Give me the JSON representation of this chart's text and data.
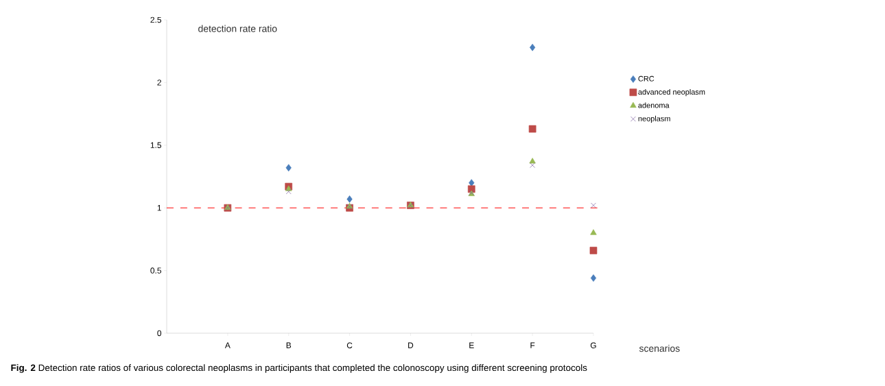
{
  "chart_data": {
    "type": "scatter",
    "ylabel": "detection rate ratio",
    "xlabel": "scenarios",
    "annotations": [
      "**Fig. 2** Detection rate ratios of various colorectal neoplasms in participants that completed the colonoscopy using different screening protocols"
    ],
    "categories": [
      "A",
      "B",
      "C",
      "D",
      "E",
      "F",
      "G"
    ],
    "series": [
      {
        "name": "CRC",
        "color": "#4a7ebb",
        "marker": "diamond",
        "values": [
          null,
          1.32,
          1.07,
          null,
          1.2,
          2.28,
          0.44
        ]
      },
      {
        "name": "advanced neoplasm",
        "color": "#be4b48",
        "marker": "square",
        "values": [
          1.0,
          1.17,
          1.0,
          1.02,
          1.15,
          1.63,
          0.66
        ]
      },
      {
        "name": "adenoma",
        "color": "#98b954",
        "marker": "triangle",
        "values": [
          1.0,
          1.15,
          1.01,
          1.02,
          1.11,
          1.37,
          0.8
        ]
      },
      {
        "name": "neoplasm",
        "color": "#7d60a0",
        "marker": "cross",
        "values": [
          1.0,
          1.13,
          1.01,
          1.02,
          1.12,
          1.34,
          1.02
        ]
      }
    ],
    "ylim": [
      0,
      2.5
    ],
    "yticks": [
      0,
      0.5,
      1,
      1.5,
      2,
      2.5
    ],
    "ref_lines": [
      {
        "axis": "y",
        "value": 1,
        "color": "#ff0000",
        "line_style": "dashed"
      }
    ],
    "grid": false,
    "legend": "right"
  }
}
